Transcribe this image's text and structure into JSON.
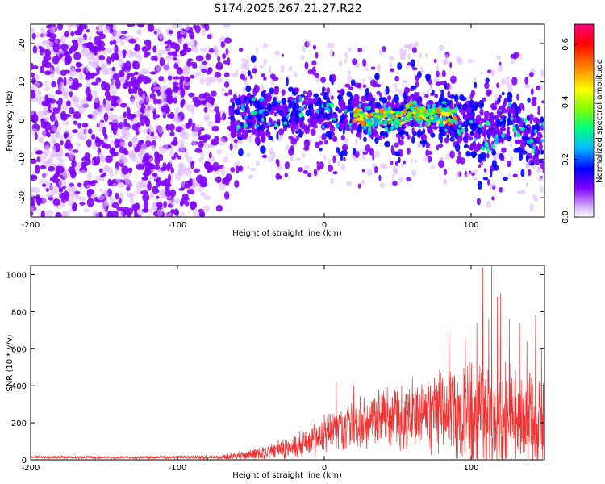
{
  "title": "S174.2025.267.21.27.R22",
  "chart_data": [
    {
      "type": "heatmap",
      "xlabel": "Height of straight line (km)",
      "ylabel": "Frequency (Hz)",
      "xlim": [
        -200,
        150
      ],
      "ylim": [
        -25,
        25
      ],
      "x_ticks": [
        -200,
        -100,
        0,
        100
      ],
      "y_ticks": [
        -20,
        -10,
        0,
        10,
        20
      ],
      "colorbar": {
        "label": "Normalized spectral amplitude",
        "range": [
          0.0,
          0.67
        ],
        "ticks": [
          "0.0",
          "0.2",
          "0.4",
          "0.6"
        ],
        "colors": [
          "#ffffff",
          "#d9b3ff",
          "#8000ff",
          "#0000ff",
          "#00bfff",
          "#00ff80",
          "#80ff00",
          "#ffff00",
          "#ff8000",
          "#ff0000",
          "#ff0080"
        ]
      },
      "ridge": [
        [
          -60,
          1
        ],
        [
          -40,
          2
        ],
        [
          -20,
          3
        ],
        [
          0,
          2
        ],
        [
          10,
          1.5
        ],
        [
          20,
          1
        ],
        [
          30,
          0.5
        ],
        [
          40,
          1
        ],
        [
          50,
          0
        ],
        [
          60,
          3
        ],
        [
          70,
          1
        ],
        [
          80,
          1
        ],
        [
          90,
          1
        ],
        [
          100,
          -2
        ],
        [
          110,
          -5
        ],
        [
          120,
          -1
        ],
        [
          130,
          1
        ],
        [
          140,
          -5
        ],
        [
          150,
          -4
        ]
      ]
    },
    {
      "type": "line",
      "xlabel": "Height of straight line (km)",
      "ylabel": "SNR (10 * v/v)",
      "xlim": [
        -200,
        150
      ],
      "ylim": [
        0,
        1050
      ],
      "x_ticks": [
        -200,
        -100,
        0,
        100
      ],
      "y_ticks": [
        0,
        200,
        400,
        600,
        800,
        1000
      ],
      "color": "#ee3333",
      "envelope": {
        "x": [
          -200,
          -150,
          -100,
          -70,
          -50,
          -30,
          -10,
          0,
          10,
          30,
          50,
          70,
          90,
          110,
          130,
          150
        ],
        "baseline": [
          15,
          12,
          14,
          15,
          30,
          50,
          100,
          130,
          170,
          210,
          230,
          250,
          240,
          220,
          220,
          240
        ],
        "amplitude": [
          8,
          7,
          8,
          12,
          30,
          50,
          80,
          100,
          120,
          140,
          160,
          200,
          260,
          300,
          280,
          260
        ]
      },
      "peaks": [
        [
          8,
          420
        ],
        [
          20,
          400
        ],
        [
          60,
          450
        ],
        [
          85,
          680
        ],
        [
          96,
          660
        ],
        [
          104,
          740
        ],
        [
          108,
          1040
        ],
        [
          112,
          760
        ],
        [
          114,
          1050
        ],
        [
          118,
          880
        ],
        [
          120,
          900
        ],
        [
          126,
          760
        ],
        [
          133,
          740
        ],
        [
          138,
          640
        ],
        [
          144,
          780
        ],
        [
          148,
          600
        ]
      ]
    }
  ]
}
